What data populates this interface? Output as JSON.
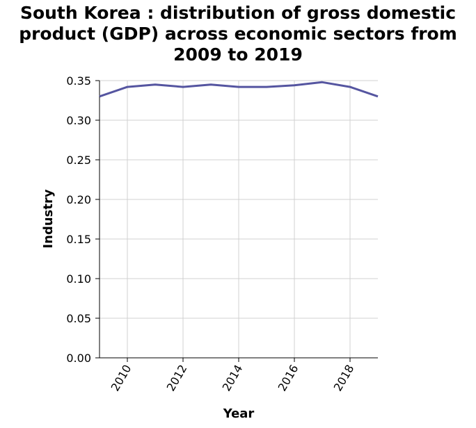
{
  "chart_data": {
    "type": "line",
    "title_lines": [
      "South Korea : distribution of gross domestic",
      "product (GDP) across economic sectors from",
      "2009 to 2019"
    ],
    "xlabel": "Year",
    "ylabel": "Industry",
    "xlim": [
      2009,
      2019
    ],
    "ylim": [
      0,
      0.35
    ],
    "x_ticks": [
      2010,
      2012,
      2014,
      2016,
      2018
    ],
    "y_ticks": [
      "0.00",
      "0.05",
      "0.10",
      "0.15",
      "0.20",
      "0.25",
      "0.30",
      "0.35"
    ],
    "grid": true,
    "line_color": "#5555a0",
    "series": [
      {
        "x": [
          2009,
          2010,
          2011,
          2012,
          2013,
          2014,
          2015,
          2016,
          2017,
          2018,
          2019
        ],
        "values": [
          0.33,
          0.342,
          0.345,
          0.342,
          0.345,
          0.342,
          0.342,
          0.344,
          0.348,
          0.342,
          0.33
        ]
      }
    ]
  }
}
